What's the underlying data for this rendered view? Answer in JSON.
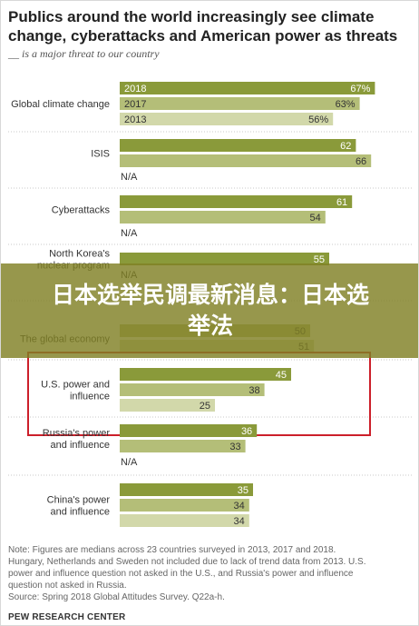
{
  "header": {
    "title": "Publics around the world increasingly see climate change, cyberattacks and American power as threats",
    "subtitle": "__ is a major threat to our country"
  },
  "overlay": {
    "text": "日本选举民调最新消息：日本选举法"
  },
  "chart_data": {
    "type": "bar",
    "orientation": "horizontal",
    "series": [
      {
        "name": "2018",
        "color": "#8a9a3a"
      },
      {
        "name": "2017",
        "color": "#b4be78"
      },
      {
        "name": "2013",
        "color": "#d2d8aa"
      }
    ],
    "groups": [
      {
        "label": "Global climate change",
        "values": [
          67,
          63,
          56
        ],
        "value_labels": [
          "67%",
          "63%",
          "56%"
        ],
        "series_labels": [
          "2018",
          "2017",
          "2013"
        ]
      },
      {
        "label": "ISIS",
        "values": [
          62,
          66,
          null
        ],
        "value_labels": [
          "62",
          "66",
          "N/A"
        ]
      },
      {
        "label": "Cyberattacks",
        "values": [
          61,
          54,
          null
        ],
        "value_labels": [
          "61",
          "54",
          "N/A"
        ]
      },
      {
        "label": "North Korea's nuclear program",
        "values": [
          55,
          null,
          null
        ],
        "value_labels": [
          "55",
          "N/A",
          ""
        ]
      },
      {
        "label": "The global economy",
        "values": [
          null,
          50,
          51
        ],
        "value_labels": [
          "",
          "50",
          "51"
        ]
      },
      {
        "label": "U.S. power and influence",
        "values": [
          45,
          38,
          25
        ],
        "value_labels": [
          "45",
          "38",
          "25"
        ],
        "highlighted": true
      },
      {
        "label": "Russia's power and influence",
        "values": [
          36,
          33,
          null
        ],
        "value_labels": [
          "36",
          "33",
          "N/A"
        ]
      },
      {
        "label": "China's power and influence",
        "values": [
          35,
          34,
          34
        ],
        "value_labels": [
          "35",
          "34",
          "34"
        ]
      }
    ],
    "xlim": [
      0,
      100
    ],
    "grid": false,
    "highlight_color": "#cc1f2a"
  },
  "notes": {
    "lines": [
      "Note: Figures are medians across 23 countries surveyed in 2013, 2017 and 2018.",
      "Hungary, Netherlands and Sweden not included due to lack of trend data from 2013. U.S.",
      "power and influence question not asked in the U.S., and Russia's power and influence",
      "question not asked in Russia.",
      "Source: Spring 2018 Global Attitudes Survey. Q22a-h."
    ],
    "org": "PEW RESEARCH CENTER"
  }
}
